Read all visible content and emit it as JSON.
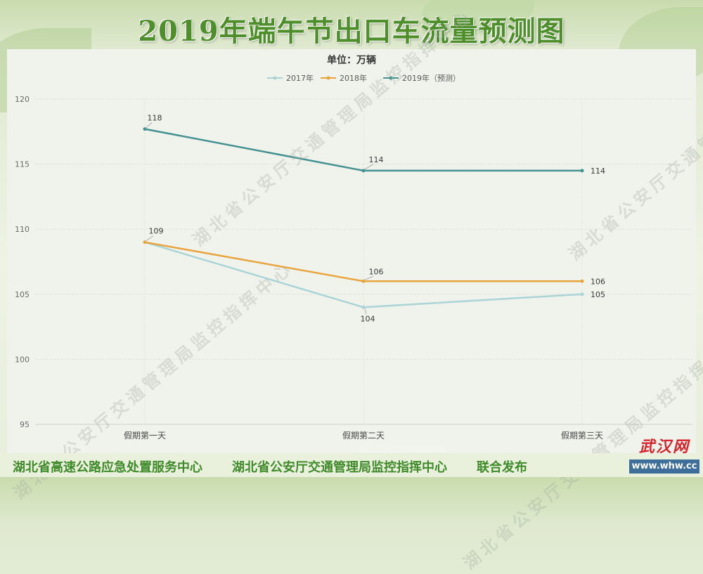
{
  "header": {
    "title": "2019年端午节出口车流量预测图"
  },
  "chart_data": {
    "type": "line",
    "subtitle": "单位：万辆",
    "categories": [
      "假期第一天",
      "假期第二天",
      "假期第三天"
    ],
    "series": [
      {
        "name": "2017年",
        "values": [
          109,
          104,
          105
        ],
        "color": "#a8d4d6",
        "labels": [
          "",
          "104",
          "105"
        ]
      },
      {
        "name": "2018年",
        "values": [
          109,
          106,
          106
        ],
        "color": "#e8a23a",
        "labels": [
          "109",
          "106",
          "106"
        ]
      },
      {
        "name": "2019年（预测）",
        "values": [
          117.7,
          114.5,
          114.5
        ],
        "color": "#3f8f8f",
        "labels": [
          "118",
          "114",
          "114"
        ]
      }
    ],
    "ylim": [
      95,
      120
    ],
    "yticks": [
      "95",
      "100",
      "105",
      "110",
      "115",
      "120"
    ],
    "grid": true,
    "legend": "top-center"
  },
  "watermark": {
    "text": "湖北省公安厅交通管理局监控指挥中心"
  },
  "footer": {
    "org1": "湖北省高速公路应急处置服务中心",
    "org2": "湖北省公安厅交通管理局监控指挥中心",
    "publish": "联合发布"
  },
  "logo": {
    "name": "武汉网",
    "url": "www.whw.cc"
  }
}
